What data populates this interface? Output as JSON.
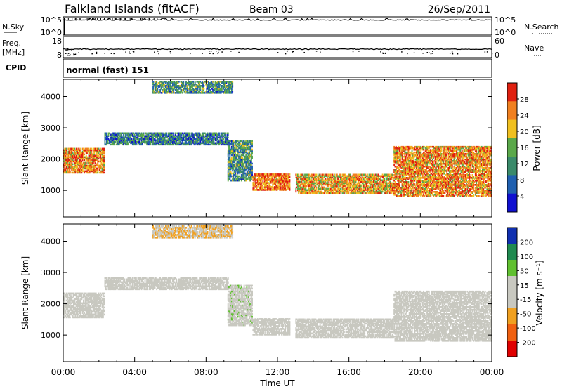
{
  "header": {
    "station": "Falkland Islands (fitACF)",
    "beam": "Beam 03",
    "date": "26/Sep/2011"
  },
  "status_panels": {
    "nsky_label": "N.Sky",
    "nsky_ticks": [
      "10^5",
      "10^0"
    ],
    "nsearch_label": "N.Search",
    "nsearch_ticks": [
      "10^5",
      "10^0"
    ],
    "freq_label_1": "Freq.",
    "freq_label_2": "[MHz]",
    "freq_ticks": [
      "18",
      "8"
    ],
    "nave_label": "Nave",
    "nave_ticks": [
      "60",
      "0"
    ],
    "cpid_label": "CPID",
    "cpid_value": "normal (fast) 151"
  },
  "chart_data": [
    {
      "type": "heatmap",
      "name": "Power",
      "ylabel": "Slant Range [km]",
      "ylim": [
        150,
        4550
      ],
      "yticks": [
        1000,
        2000,
        3000,
        4000
      ],
      "xlim_hours": [
        0,
        24
      ],
      "colorbar_label": "Power [dB]",
      "colorbar_ticks": [
        "4",
        "8",
        "12",
        "16",
        "20",
        "24",
        "28"
      ],
      "colorbar_range": [
        0,
        32
      ],
      "colors": [
        "#1010d0",
        "#2060b0",
        "#3a8a6a",
        "#5aa84a",
        "#f0c020",
        "#f08020",
        "#e02010"
      ],
      "regions": [
        {
          "t0": 0.0,
          "t1": 2.3,
          "r0": 1550,
          "r1": 2350,
          "power": 24
        },
        {
          "t0": 2.3,
          "t1": 9.2,
          "r0": 2450,
          "r1": 2850,
          "power": 10
        },
        {
          "t0": 9.2,
          "t1": 10.6,
          "r0": 1300,
          "r1": 2600,
          "power": 12
        },
        {
          "t0": 10.6,
          "t1": 12.7,
          "r0": 1000,
          "r1": 1500,
          "power": 26
        },
        {
          "t0": 13.0,
          "t1": 18.5,
          "r0": 900,
          "r1": 1500,
          "power": 22
        },
        {
          "t0": 18.5,
          "t1": 24.0,
          "r0": 800,
          "r1": 2400,
          "power": 24
        },
        {
          "t0": 5.0,
          "t1": 9.5,
          "r0": 4100,
          "r1": 4500,
          "power": 12
        }
      ]
    },
    {
      "type": "heatmap",
      "name": "Velocity",
      "ylabel": "Slant Range [km]",
      "ylim": [
        150,
        4550
      ],
      "yticks": [
        1000,
        2000,
        3000,
        4000
      ],
      "xlim_hours": [
        0,
        24
      ],
      "xticks": [
        "00:00",
        "04:00",
        "08:00",
        "12:00",
        "16:00",
        "20:00",
        "00:00"
      ],
      "xlabel": "Time UT",
      "colorbar_label": "Velocity [m s⁻¹]",
      "colorbar_ticks": [
        "200",
        "100",
        "50",
        "15",
        "-15",
        "-50",
        "-100",
        "-200"
      ],
      "colorbar_range": [
        -250,
        250
      ],
      "colors": [
        "#e00000",
        "#f06010",
        "#f0a020",
        "#c8c8c0",
        "#c8c8c0",
        "#60c030",
        "#208a50",
        "#1030b0"
      ],
      "regions": [
        {
          "t0": 0.0,
          "t1": 2.3,
          "r0": 1550,
          "r1": 2350,
          "velocity": -30
        },
        {
          "t0": 2.3,
          "t1": 9.2,
          "r0": 2450,
          "r1": 2850,
          "velocity": 0
        },
        {
          "t0": 9.2,
          "t1": 10.6,
          "r0": 1300,
          "r1": 2600,
          "velocity": 40
        },
        {
          "t0": 10.6,
          "t1": 12.7,
          "r0": 1000,
          "r1": 1500,
          "velocity": 0
        },
        {
          "t0": 13.0,
          "t1": 18.5,
          "r0": 900,
          "r1": 1500,
          "velocity": 0
        },
        {
          "t0": 18.5,
          "t1": 24.0,
          "r0": 800,
          "r1": 2400,
          "velocity": 30
        },
        {
          "t0": 5.0,
          "t1": 9.5,
          "r0": 4100,
          "r1": 4500,
          "velocity": -60
        }
      ]
    }
  ]
}
